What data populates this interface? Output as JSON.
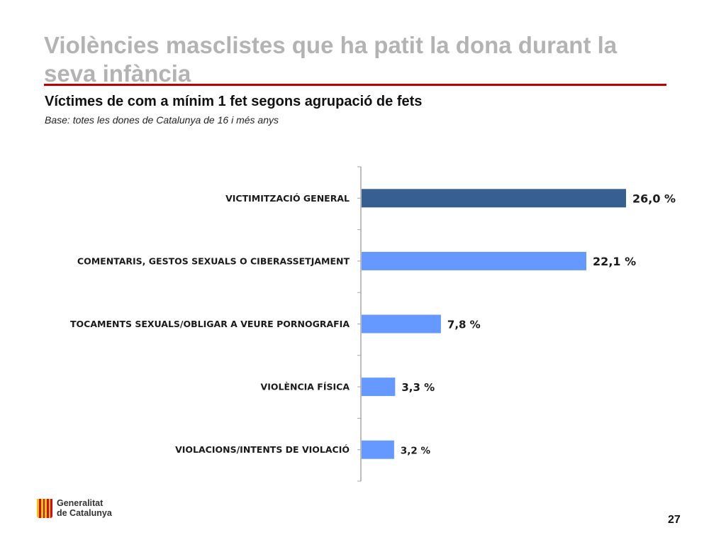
{
  "slide": {
    "title": "Violències masclistes que ha patit la dona durant la seva infància",
    "subtitle": "Víctimes de com a mínim 1 fet segons agrupació de fets",
    "base_note": "Base: totes les dones de Catalunya de 16 i més anys",
    "page_number": "27"
  },
  "logo": {
    "line1": "Generalitat",
    "line2": "de Catalunya"
  },
  "colors": {
    "highlight_bar": "#375f91",
    "bar": "#6699ff",
    "title": "#b3b3b3",
    "rule": "#c00000",
    "axis": "#a6a6a6"
  },
  "chart_data": {
    "type": "bar",
    "orientation": "horizontal",
    "categories": [
      "VICTIMITZACIÓ GENERAL",
      "COMENTARIS, GESTOS SEXUALS O CIBERASSETJAMENT",
      "TOCAMENTS SEXUALS/OBLIGAR A VEURE PORNOGRAFIA",
      "VIOLÈNCIA FÍSICA",
      "VIOLACIONS/INTENTS DE VIOLACIÓ"
    ],
    "values": [
      26.0,
      22.1,
      7.8,
      3.3,
      3.2
    ],
    "value_labels": [
      "26,0 %",
      "22,1 %",
      "7,8 %",
      "3,3 %",
      "3,2 %"
    ],
    "highlighted_index": 0,
    "unit": "%",
    "title": "",
    "xlabel": "",
    "ylabel": "",
    "grid": false,
    "legend": "none"
  }
}
